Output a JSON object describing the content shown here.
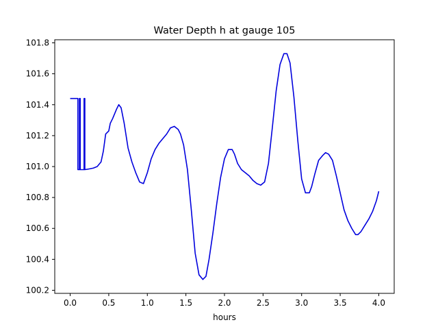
{
  "chart_data": {
    "type": "line",
    "title": "Water Depth h at gauge 105",
    "xlabel": "hours",
    "ylabel": "",
    "xlim": [
      -0.2,
      4.2
    ],
    "ylim": [
      100.18,
      101.82
    ],
    "xticks": [
      0.0,
      0.5,
      1.0,
      1.5,
      2.0,
      2.5,
      3.0,
      3.5,
      4.0
    ],
    "xtick_labels": [
      "0.0",
      "0.5",
      "1.0",
      "1.5",
      "2.0",
      "2.5",
      "3.0",
      "3.5",
      "4.0"
    ],
    "yticks": [
      100.2,
      100.4,
      100.6,
      100.8,
      101.0,
      101.2,
      101.4,
      101.6,
      101.8
    ],
    "ytick_labels": [
      "100.2",
      "100.4",
      "100.6",
      "100.8",
      "101.0",
      "101.2",
      "101.4",
      "101.6",
      "101.8"
    ],
    "grid": false,
    "series": [
      {
        "color": "#0000dd",
        "x": [
          0.0,
          0.1,
          0.1,
          0.12,
          0.12,
          0.13,
          0.13,
          0.18,
          0.18,
          0.19,
          0.19,
          0.25,
          0.3,
          0.35,
          0.4,
          0.43,
          0.46,
          0.5,
          0.52,
          0.55,
          0.6,
          0.63,
          0.66,
          0.68,
          0.7,
          0.75,
          0.8,
          0.85,
          0.9,
          0.95,
          1.0,
          1.05,
          1.1,
          1.15,
          1.2,
          1.25,
          1.3,
          1.35,
          1.4,
          1.43,
          1.47,
          1.52,
          1.57,
          1.62,
          1.67,
          1.72,
          1.76,
          1.8,
          1.85,
          1.9,
          1.95,
          2.0,
          2.05,
          2.1,
          2.13,
          2.17,
          2.22,
          2.27,
          2.32,
          2.37,
          2.42,
          2.47,
          2.52,
          2.57,
          2.62,
          2.67,
          2.72,
          2.77,
          2.81,
          2.85,
          2.9,
          2.95,
          3.0,
          3.05,
          3.1,
          3.13,
          3.17,
          3.22,
          3.27,
          3.31,
          3.35,
          3.4,
          3.45,
          3.5,
          3.55,
          3.6,
          3.65,
          3.7,
          3.73,
          3.77,
          3.82,
          3.87,
          3.92,
          3.97,
          4.0
        ],
        "y": [
          101.44,
          101.44,
          100.98,
          100.98,
          101.44,
          101.44,
          100.98,
          100.98,
          101.44,
          101.44,
          100.98,
          100.985,
          100.99,
          101.0,
          101.03,
          101.1,
          101.21,
          101.23,
          101.28,
          101.31,
          101.37,
          101.4,
          101.38,
          101.33,
          101.28,
          101.12,
          101.03,
          100.96,
          100.9,
          100.89,
          100.96,
          101.05,
          101.11,
          101.15,
          101.18,
          101.21,
          101.25,
          101.26,
          101.24,
          101.21,
          101.14,
          100.98,
          100.72,
          100.44,
          100.3,
          100.27,
          100.29,
          100.4,
          100.57,
          100.76,
          100.93,
          101.05,
          101.11,
          101.11,
          101.08,
          101.02,
          100.98,
          100.96,
          100.94,
          100.91,
          100.89,
          100.88,
          100.9,
          101.02,
          101.25,
          101.49,
          101.66,
          101.73,
          101.73,
          101.67,
          101.45,
          101.17,
          100.92,
          100.83,
          100.83,
          100.87,
          100.95,
          101.04,
          101.07,
          101.09,
          101.08,
          101.04,
          100.94,
          100.83,
          100.72,
          100.65,
          100.6,
          100.56,
          100.56,
          100.58,
          100.62,
          100.66,
          100.71,
          100.78,
          100.84
        ]
      }
    ]
  }
}
